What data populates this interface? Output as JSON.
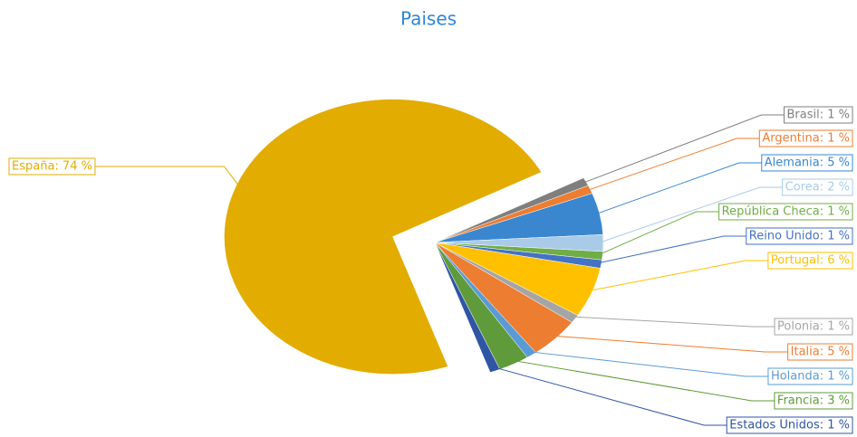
{
  "chart_data": {
    "type": "pie",
    "title": "Paises",
    "values": [
      1,
      1,
      5,
      2,
      1,
      1,
      6,
      1,
      5,
      1,
      3,
      1,
      74
    ],
    "value_labels": [
      "Brasil: 1 %",
      "Argentina: 1 %",
      "Alemania: 5 %",
      "Corea: 2 %",
      "República Checa: 1 %",
      "Reino Unido: 1 %",
      "Portugal: 6 %",
      "Polonia: 1 %",
      "Italia: 5 %",
      "Holanda: 1 %",
      "Francia: 3 %",
      "Estados Unidos: 1 %",
      "España: 74 %"
    ],
    "colors": [
      "#7f7f7f",
      "#ed7d31",
      "#3a87d0",
      "#a9cbe8",
      "#70ad47",
      "#4472c4",
      "#ffc000",
      "#a5a5a5",
      "#ed7d31",
      "#5b9bd5",
      "#5f9b3b",
      "#2f55a4",
      "#e2ac00"
    ]
  }
}
